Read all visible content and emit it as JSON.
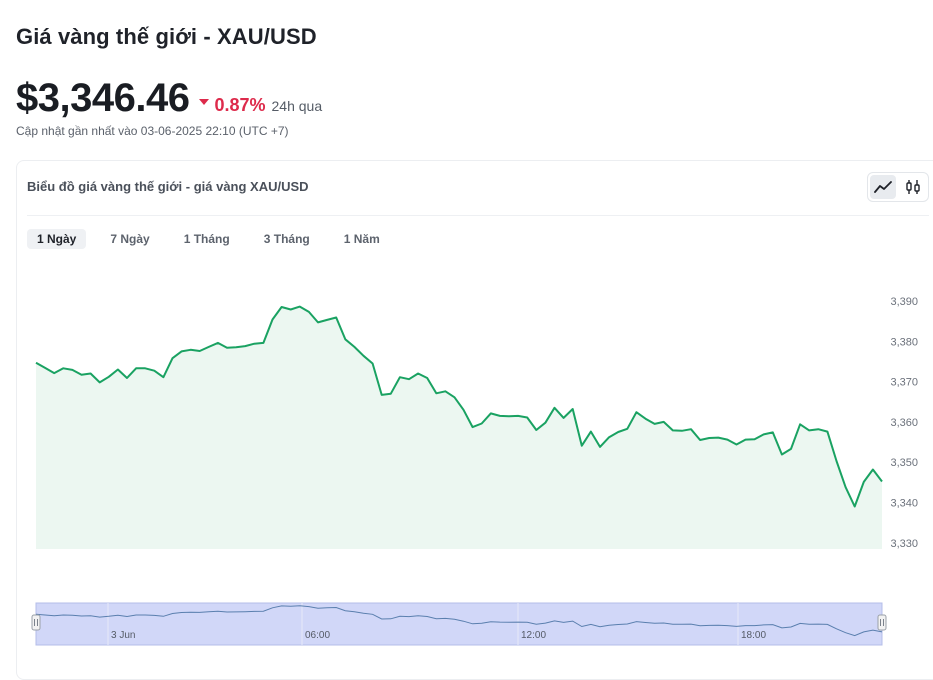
{
  "page": {
    "title": "Giá vàng thế giới - XAU/USD",
    "price": "$3,346.46",
    "change_direction": "down",
    "change_percent": "0.87%",
    "change_period": "24h qua",
    "updated": "Cập nhật gần nhất vào 03-06-2025 22:10 (UTC +7)"
  },
  "chart_card": {
    "title": "Biểu đồ giá vàng thế giới - giá vàng XAU/USD",
    "view_modes": [
      {
        "icon": "line-chart-icon",
        "active": true
      },
      {
        "icon": "candlestick-icon",
        "active": false
      }
    ],
    "tabs": [
      {
        "label": "1 Ngày",
        "active": true
      },
      {
        "label": "7 Ngày",
        "active": false
      },
      {
        "label": "1 Tháng",
        "active": false
      },
      {
        "label": "3 Tháng",
        "active": false
      },
      {
        "label": "1 Năm",
        "active": false
      }
    ]
  },
  "colors": {
    "line": "#1aa262",
    "fill": "#eaf6ef",
    "negative": "#dd2a4b",
    "navigator_fill": "#c9d0f7"
  },
  "chart_data": {
    "type": "area",
    "title": "",
    "xlabel": "",
    "ylabel": "",
    "ylim": [
      3328,
      3394
    ],
    "y_ticks": [
      "3,330",
      "3,340",
      "3,350",
      "3,360",
      "3,370",
      "3,380",
      "3,390"
    ],
    "navigator_labels": [
      "3 Jun",
      "06:00",
      "12:00",
      "18:00"
    ],
    "series": [
      {
        "values": [
          3374.7,
          3373.4,
          3372.1,
          3373.3,
          3372.9,
          3371.7,
          3372.0,
          3369.8,
          3371.2,
          3373.0,
          3370.9,
          3373.3,
          3373.3,
          3372.7,
          3371.1,
          3375.8,
          3377.5,
          3377.9,
          3377.6,
          3378.6,
          3379.6,
          3378.4,
          3378.5,
          3378.8,
          3379.4,
          3379.6,
          3385.4,
          3388.5,
          3387.9,
          3388.6,
          3387.3,
          3384.7,
          3385.3,
          3385.9,
          3380.5,
          3378.6,
          3376.4,
          3374.5,
          3366.7,
          3367.0,
          3371.1,
          3370.6,
          3372.0,
          3370.9,
          3367.1,
          3367.6,
          3366.1,
          3363.0,
          3358.7,
          3359.6,
          3362.1,
          3361.5,
          3361.4,
          3361.5,
          3361.1,
          3358.0,
          3359.8,
          3363.5,
          3361.0,
          3363.2,
          3354.1,
          3357.6,
          3353.8,
          3356.2,
          3357.5,
          3358.3,
          3362.4,
          3360.8,
          3359.5,
          3360.0,
          3357.9,
          3357.8,
          3358.2,
          3355.5,
          3356.0,
          3356.1,
          3355.6,
          3354.4,
          3355.6,
          3355.7,
          3356.9,
          3357.4,
          3351.9,
          3353.3,
          3359.4,
          3357.9,
          3358.2,
          3357.6,
          3350.3,
          3343.8,
          3339.0,
          3345.1,
          3348.2,
          3345.2
        ]
      }
    ]
  }
}
